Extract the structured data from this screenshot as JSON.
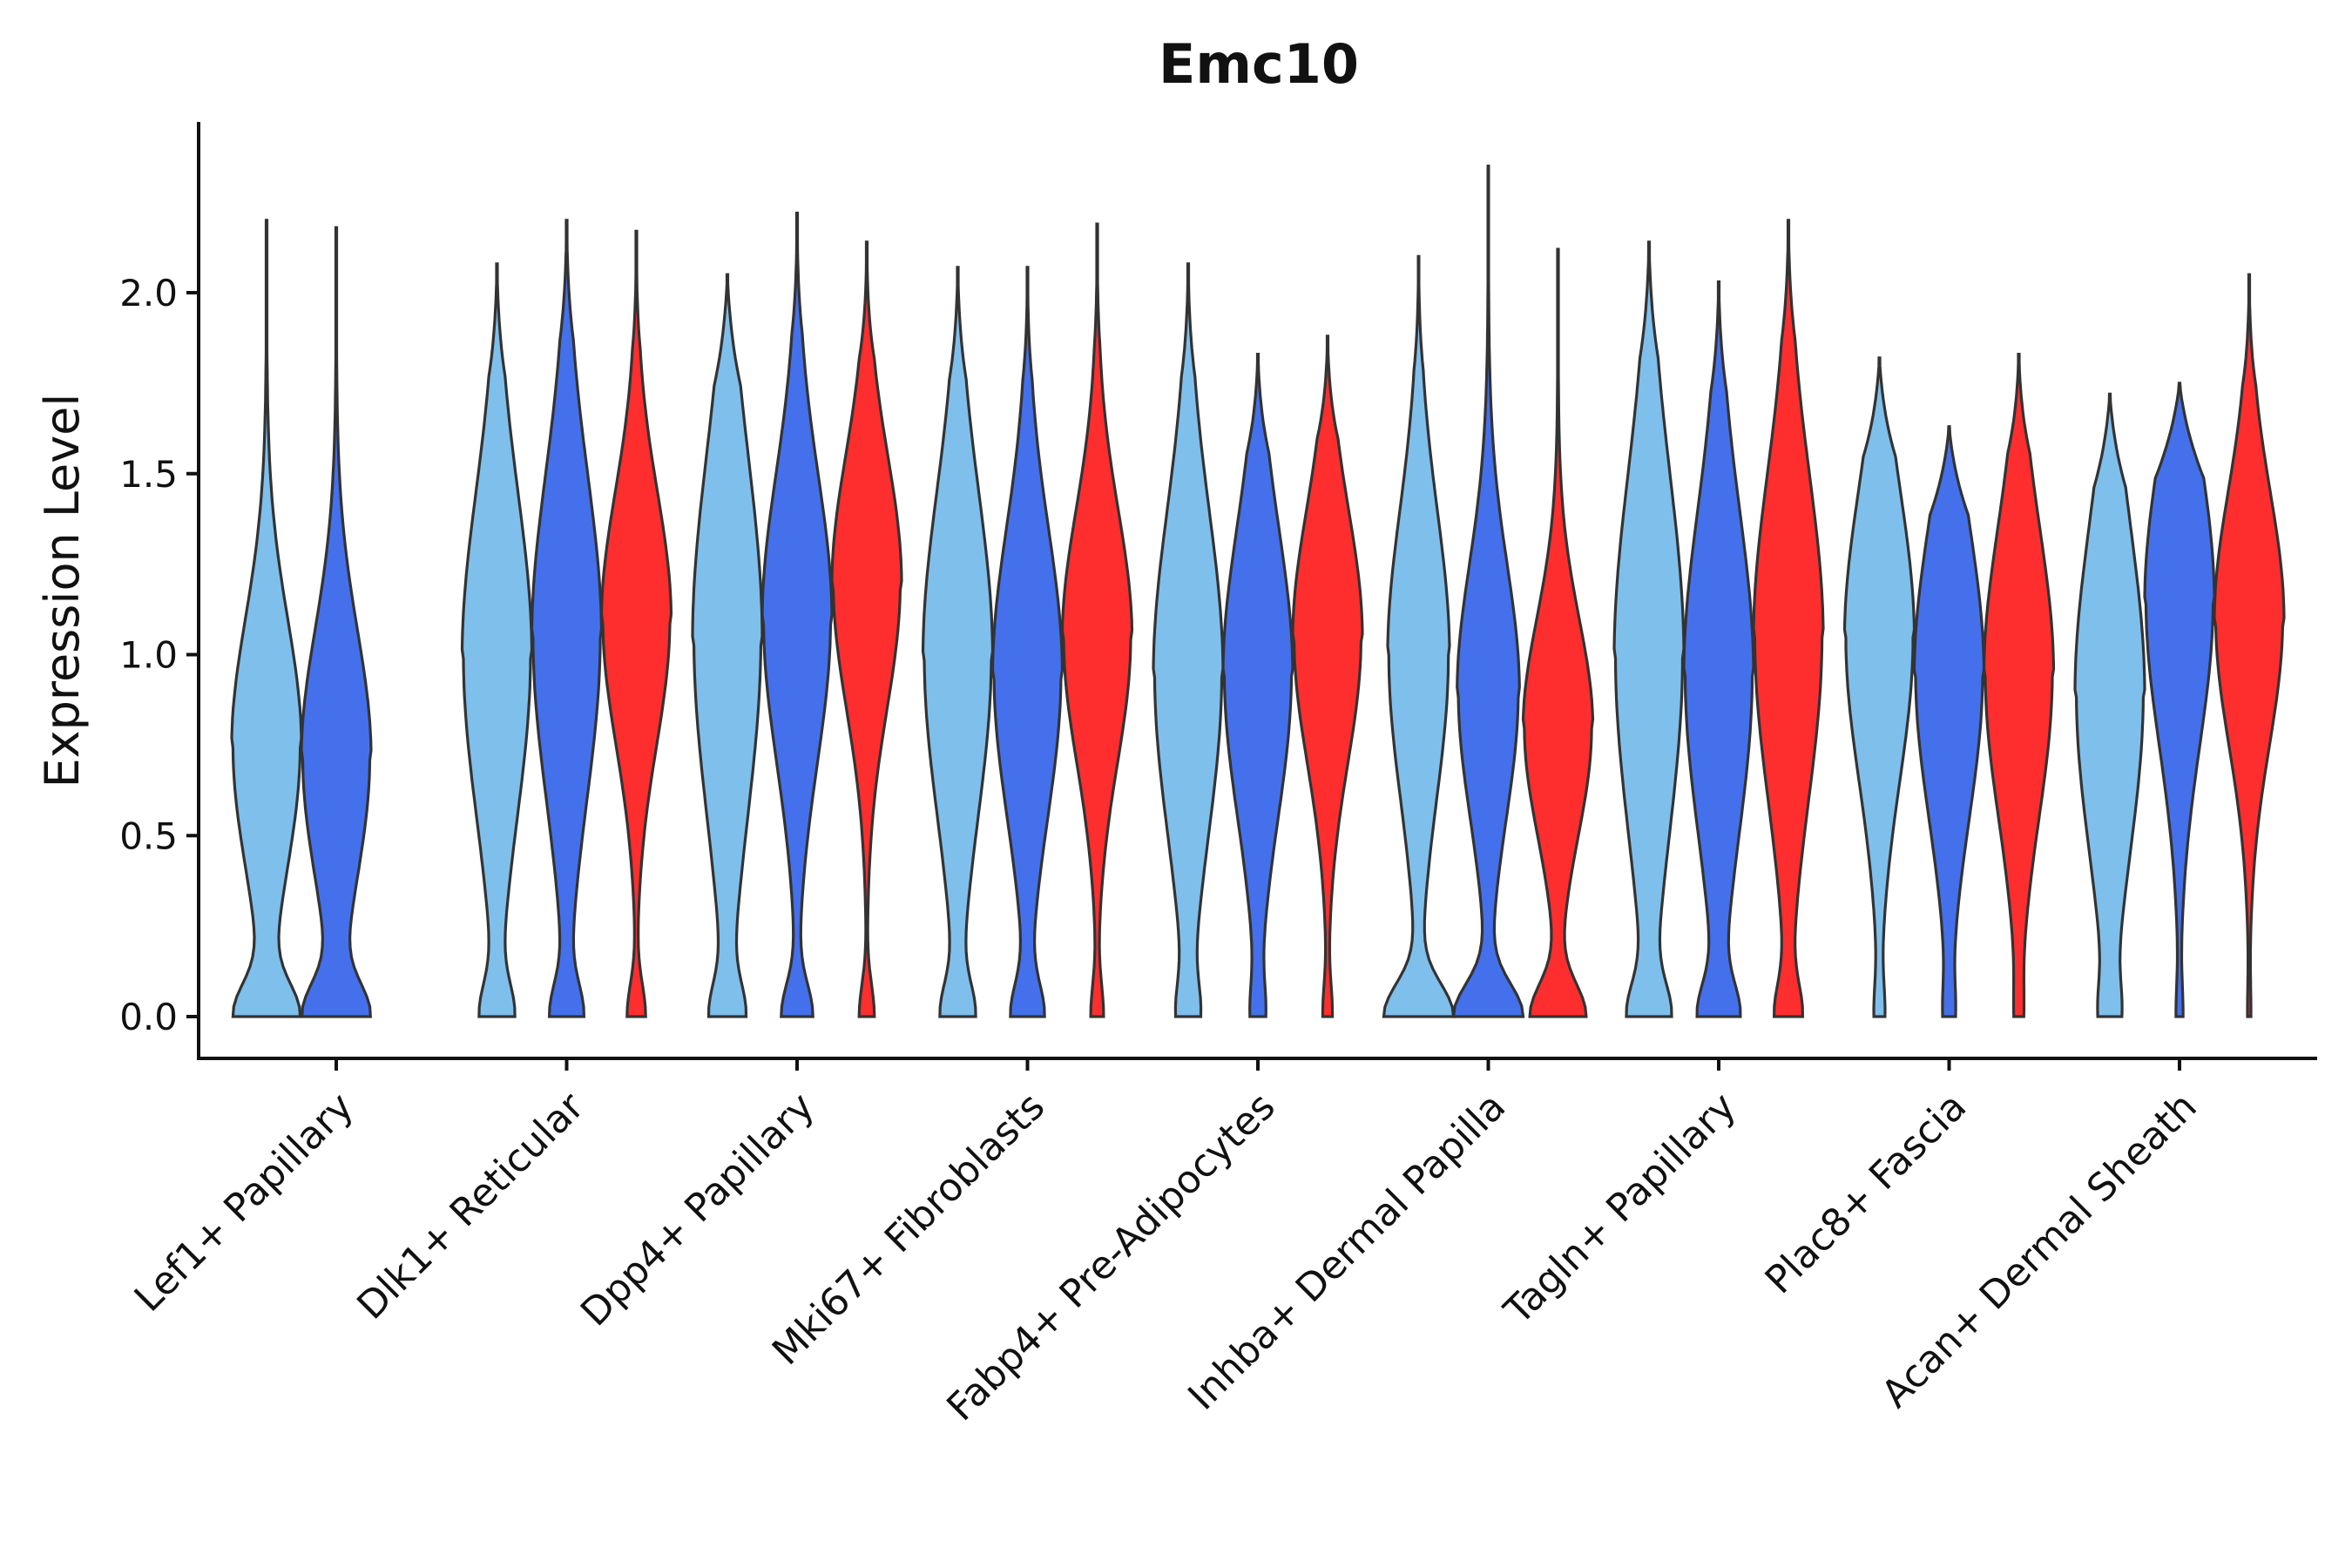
{
  "chart_data": {
    "type": "violin",
    "title": "Emc10",
    "xlabel": "",
    "ylabel": "Expression Level",
    "ylim": [
      -0.12,
      2.45
    ],
    "yticks": [
      "0.0",
      "0.5",
      "1.0",
      "1.5",
      "2.0"
    ],
    "ytick_values": [
      0,
      0.5,
      1,
      1.5,
      2
    ],
    "grid": false,
    "legend": "none",
    "categories": [
      "Lef1+ Papillary",
      "Dlk1+ Reticular",
      "Dpp4+ Papillary",
      "Mki67+ Fibroblasts",
      "Fabp4+ Pre-Adipocytes",
      "Inhba+ Dermal Papilla",
      "Tagln+ Papillary",
      "Plac8+ Fascia",
      "Acan+ Dermal Sheath"
    ],
    "series_colors": [
      "#7fbfec",
      "#4470ec",
      "#ff2e2e"
    ],
    "violins": [
      {
        "category": 0,
        "group": 0,
        "max": 2.2,
        "mode": 0.75,
        "zero_frac": 0.2,
        "spread": 0.35
      },
      {
        "category": 0,
        "group": 1,
        "max": 2.18,
        "mode": 0.72,
        "zero_frac": 0.2,
        "spread": 0.35
      },
      {
        "category": 1,
        "group": 0,
        "max": 2.08,
        "mode": 1.0,
        "zero_frac": 0.1,
        "spread": 0.45
      },
      {
        "category": 1,
        "group": 1,
        "max": 2.2,
        "mode": 1.05,
        "zero_frac": 0.1,
        "spread": 0.45
      },
      {
        "category": 1,
        "group": 2,
        "max": 2.17,
        "mode": 1.1,
        "zero_frac": 0.06,
        "spread": 0.35
      },
      {
        "category": 2,
        "group": 0,
        "max": 2.05,
        "mode": 1.05,
        "zero_frac": 0.1,
        "spread": 0.5
      },
      {
        "category": 2,
        "group": 1,
        "max": 2.22,
        "mode": 1.1,
        "zero_frac": 0.1,
        "spread": 0.4
      },
      {
        "category": 2,
        "group": 2,
        "max": 2.14,
        "mode": 1.2,
        "zero_frac": 0.05,
        "spread": 0.35
      },
      {
        "category": 3,
        "group": 0,
        "max": 2.07,
        "mode": 1.0,
        "zero_frac": 0.1,
        "spread": 0.45
      },
      {
        "category": 3,
        "group": 1,
        "max": 2.07,
        "mode": 0.95,
        "zero_frac": 0.1,
        "spread": 0.4
      },
      {
        "category": 3,
        "group": 2,
        "max": 2.19,
        "mode": 1.05,
        "zero_frac": 0.04,
        "spread": 0.35
      },
      {
        "category": 4,
        "group": 0,
        "max": 2.08,
        "mode": 0.95,
        "zero_frac": 0.06,
        "spread": 0.45
      },
      {
        "category": 4,
        "group": 1,
        "max": 1.83,
        "mode": 0.95,
        "zero_frac": 0.04,
        "spread": 0.4
      },
      {
        "category": 4,
        "group": 2,
        "max": 1.88,
        "mode": 1.05,
        "zero_frac": 0.03,
        "spread": 0.35
      },
      {
        "category": 5,
        "group": 0,
        "max": 2.1,
        "mode": 1.0,
        "zero_frac": 0.25,
        "spread": 0.4
      },
      {
        "category": 5,
        "group": 1,
        "max": 2.35,
        "mode": 0.9,
        "zero_frac": 0.25,
        "spread": 0.35
      },
      {
        "category": 5,
        "group": 2,
        "max": 2.12,
        "mode": 0.8,
        "zero_frac": 0.18,
        "spread": 0.3
      },
      {
        "category": 6,
        "group": 0,
        "max": 2.14,
        "mode": 1.0,
        "zero_frac": 0.12,
        "spread": 0.5
      },
      {
        "category": 6,
        "group": 1,
        "max": 2.03,
        "mode": 0.95,
        "zero_frac": 0.12,
        "spread": 0.45
      },
      {
        "category": 6,
        "group": 2,
        "max": 2.2,
        "mode": 1.05,
        "zero_frac": 0.08,
        "spread": 0.45
      },
      {
        "category": 7,
        "group": 0,
        "max": 1.82,
        "mode": 1.05,
        "zero_frac": 0.03,
        "spread": 0.4
      },
      {
        "category": 7,
        "group": 1,
        "max": 1.63,
        "mode": 0.95,
        "zero_frac": 0.03,
        "spread": 0.4
      },
      {
        "category": 7,
        "group": 2,
        "max": 1.83,
        "mode": 0.95,
        "zero_frac": 0.02,
        "spread": 0.4
      },
      {
        "category": 8,
        "group": 0,
        "max": 1.72,
        "mode": 0.9,
        "zero_frac": 0.05,
        "spread": 0.45
      },
      {
        "category": 8,
        "group": 1,
        "max": 1.75,
        "mode": 1.15,
        "zero_frac": 0.02,
        "spread": 0.4
      },
      {
        "category": 8,
        "group": 2,
        "max": 2.05,
        "mode": 1.1,
        "zero_frac": 0.01,
        "spread": 0.35
      }
    ]
  }
}
